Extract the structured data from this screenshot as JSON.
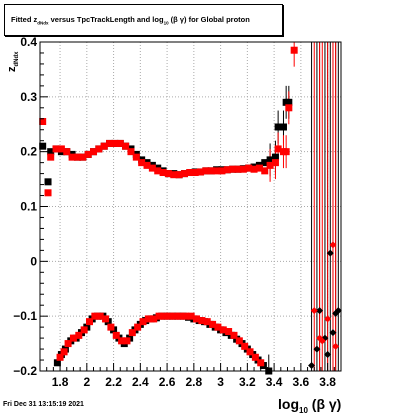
{
  "title": {
    "fitted": "Fitted",
    "z": "z",
    "z_sub": "dNdx",
    "versus": "versus TpcTrackLength and log",
    "log_sub": "10",
    "suffix": "(β γ) for Global proton"
  },
  "timestamp": "Fri Dec 31 13:15:19 2021",
  "colors": {
    "black_series": "#000000",
    "red_series": "#ff0000",
    "grid": "#aaaaaa"
  },
  "chart_data": {
    "type": "scatter",
    "title": "Fitted z_dNdx versus TpcTrackLength and log10(β γ) for Global proton",
    "xlabel": "log10 (β γ)",
    "ylabel": "z dNdx",
    "xlim": [
      1.65,
      3.9
    ],
    "ylim": [
      -0.2,
      0.4
    ],
    "x_ticks": [
      1.8,
      2.0,
      2.2,
      2.4,
      2.6,
      2.8,
      3.0,
      3.2,
      3.4,
      3.6,
      3.8
    ],
    "x_tick_labels": [
      "1.8",
      "2",
      "2.2",
      "2.4",
      "2.6",
      "2.8",
      "3",
      "3.2",
      "3.4",
      "3.6",
      "3.8"
    ],
    "y_ticks": [
      -0.2,
      -0.1,
      0.0,
      0.1,
      0.2,
      0.3,
      0.4
    ],
    "y_tick_labels": [
      "−0.2",
      "−0.1",
      "0",
      "0.1",
      "0.2",
      "0.3",
      "0.4"
    ],
    "grid": true,
    "series": [
      {
        "color": "#000000",
        "points": [
          [
            1.67,
            0.21
          ],
          [
            1.71,
            0.145
          ],
          [
            1.73,
            0.2
          ],
          [
            1.77,
            0.205
          ],
          [
            1.81,
            0.2
          ],
          [
            1.85,
            0.2
          ],
          [
            1.89,
            0.195
          ],
          [
            1.93,
            0.19
          ],
          [
            1.97,
            0.19
          ],
          [
            2.01,
            0.195
          ],
          [
            2.05,
            0.2
          ],
          [
            2.09,
            0.205
          ],
          [
            2.13,
            0.21
          ],
          [
            2.17,
            0.215
          ],
          [
            2.21,
            0.215
          ],
          [
            2.25,
            0.215
          ],
          [
            2.29,
            0.21
          ],
          [
            2.33,
            0.205
          ],
          [
            2.37,
            0.195
          ],
          [
            2.41,
            0.185
          ],
          [
            2.45,
            0.18
          ],
          [
            2.49,
            0.175
          ],
          [
            2.53,
            0.17
          ],
          [
            2.57,
            0.165
          ],
          [
            2.61,
            0.16
          ],
          [
            2.65,
            0.16
          ],
          [
            2.69,
            0.158
          ],
          [
            2.73,
            0.16
          ],
          [
            2.77,
            0.162
          ],
          [
            2.81,
            0.163
          ],
          [
            2.85,
            0.163
          ],
          [
            2.89,
            0.165
          ],
          [
            2.93,
            0.165
          ],
          [
            2.97,
            0.167
          ],
          [
            3.01,
            0.167
          ],
          [
            3.05,
            0.167
          ],
          [
            3.09,
            0.168
          ],
          [
            3.13,
            0.168
          ],
          [
            3.17,
            0.169
          ],
          [
            3.21,
            0.17
          ],
          [
            3.25,
            0.172
          ],
          [
            3.29,
            0.175
          ],
          [
            3.33,
            0.18
          ],
          [
            3.37,
            0.185
          ],
          [
            3.41,
            0.19
          ],
          [
            3.43,
            0.245
          ],
          [
            3.47,
            0.245
          ],
          [
            3.49,
            0.29
          ],
          [
            3.51,
            0.29
          ],
          [
            1.78,
            -0.185
          ],
          [
            1.81,
            -0.17
          ],
          [
            1.84,
            -0.16
          ],
          [
            1.88,
            -0.145
          ],
          [
            1.92,
            -0.14
          ],
          [
            1.96,
            -0.13
          ],
          [
            2.0,
            -0.12
          ],
          [
            2.04,
            -0.105
          ],
          [
            2.08,
            -0.1
          ],
          [
            2.12,
            -0.1
          ],
          [
            2.16,
            -0.11
          ],
          [
            2.2,
            -0.125
          ],
          [
            2.24,
            -0.14
          ],
          [
            2.28,
            -0.15
          ],
          [
            2.32,
            -0.14
          ],
          [
            2.36,
            -0.125
          ],
          [
            2.4,
            -0.115
          ],
          [
            2.44,
            -0.108
          ],
          [
            2.48,
            -0.105
          ],
          [
            2.52,
            -0.103
          ],
          [
            2.56,
            -0.1
          ],
          [
            2.6,
            -0.1
          ],
          [
            2.64,
            -0.1
          ],
          [
            2.68,
            -0.1
          ],
          [
            2.72,
            -0.1
          ],
          [
            2.76,
            -0.102
          ],
          [
            2.8,
            -0.105
          ],
          [
            2.84,
            -0.108
          ],
          [
            2.88,
            -0.11
          ],
          [
            2.92,
            -0.115
          ],
          [
            2.96,
            -0.12
          ],
          [
            3.0,
            -0.125
          ],
          [
            3.04,
            -0.13
          ],
          [
            3.08,
            -0.135
          ],
          [
            3.12,
            -0.142
          ],
          [
            3.16,
            -0.15
          ],
          [
            3.2,
            -0.16
          ],
          [
            3.24,
            -0.17
          ],
          [
            3.28,
            -0.18
          ],
          [
            3.32,
            -0.19
          ],
          [
            3.36,
            -0.2
          ],
          [
            3.68,
            -0.19
          ],
          [
            3.72,
            -0.16
          ],
          [
            3.74,
            -0.09
          ],
          [
            3.78,
            -0.14
          ],
          [
            3.8,
            -0.17
          ],
          [
            3.82,
            0.015
          ],
          [
            3.84,
            -0.13
          ],
          [
            3.86,
            -0.095
          ],
          [
            3.88,
            -0.09
          ]
        ]
      },
      {
        "color": "#ff0000",
        "points": [
          [
            1.67,
            0.255
          ],
          [
            1.71,
            0.125
          ],
          [
            1.73,
            0.19
          ],
          [
            1.77,
            0.205
          ],
          [
            1.81,
            0.205
          ],
          [
            1.85,
            0.2
          ],
          [
            1.89,
            0.19
          ],
          [
            1.93,
            0.19
          ],
          [
            1.97,
            0.19
          ],
          [
            2.01,
            0.195
          ],
          [
            2.05,
            0.2
          ],
          [
            2.09,
            0.205
          ],
          [
            2.13,
            0.21
          ],
          [
            2.17,
            0.215
          ],
          [
            2.21,
            0.215
          ],
          [
            2.25,
            0.215
          ],
          [
            2.29,
            0.21
          ],
          [
            2.33,
            0.2
          ],
          [
            2.37,
            0.19
          ],
          [
            2.41,
            0.18
          ],
          [
            2.45,
            0.175
          ],
          [
            2.49,
            0.17
          ],
          [
            2.53,
            0.165
          ],
          [
            2.57,
            0.162
          ],
          [
            2.61,
            0.16
          ],
          [
            2.65,
            0.158
          ],
          [
            2.69,
            0.158
          ],
          [
            2.73,
            0.16
          ],
          [
            2.77,
            0.162
          ],
          [
            2.81,
            0.162
          ],
          [
            2.85,
            0.163
          ],
          [
            2.89,
            0.165
          ],
          [
            2.93,
            0.165
          ],
          [
            2.97,
            0.165
          ],
          [
            3.01,
            0.165
          ],
          [
            3.05,
            0.167
          ],
          [
            3.09,
            0.168
          ],
          [
            3.13,
            0.168
          ],
          [
            3.17,
            0.168
          ],
          [
            3.21,
            0.17
          ],
          [
            3.25,
            0.168
          ],
          [
            3.29,
            0.17
          ],
          [
            3.33,
            0.165
          ],
          [
            3.37,
            0.175
          ],
          [
            3.41,
            0.18
          ],
          [
            3.43,
            0.205
          ],
          [
            3.47,
            0.2
          ],
          [
            3.49,
            0.2
          ],
          [
            3.51,
            0.28
          ],
          [
            3.55,
            0.385
          ],
          [
            1.8,
            -0.175
          ],
          [
            1.83,
            -0.165
          ],
          [
            1.86,
            -0.15
          ],
          [
            1.9,
            -0.14
          ],
          [
            1.94,
            -0.135
          ],
          [
            1.98,
            -0.125
          ],
          [
            2.02,
            -0.11
          ],
          [
            2.06,
            -0.1
          ],
          [
            2.1,
            -0.1
          ],
          [
            2.14,
            -0.105
          ],
          [
            2.18,
            -0.12
          ],
          [
            2.22,
            -0.135
          ],
          [
            2.26,
            -0.145
          ],
          [
            2.3,
            -0.145
          ],
          [
            2.34,
            -0.13
          ],
          [
            2.38,
            -0.12
          ],
          [
            2.42,
            -0.11
          ],
          [
            2.46,
            -0.105
          ],
          [
            2.5,
            -0.105
          ],
          [
            2.54,
            -0.1
          ],
          [
            2.58,
            -0.1
          ],
          [
            2.62,
            -0.1
          ],
          [
            2.66,
            -0.1
          ],
          [
            2.7,
            -0.1
          ],
          [
            2.74,
            -0.1
          ],
          [
            2.78,
            -0.1
          ],
          [
            2.82,
            -0.105
          ],
          [
            2.86,
            -0.108
          ],
          [
            2.9,
            -0.11
          ],
          [
            2.94,
            -0.115
          ],
          [
            2.98,
            -0.12
          ],
          [
            3.02,
            -0.125
          ],
          [
            3.06,
            -0.128
          ],
          [
            3.1,
            -0.135
          ],
          [
            3.14,
            -0.145
          ],
          [
            3.18,
            -0.155
          ],
          [
            3.22,
            -0.165
          ],
          [
            3.26,
            -0.175
          ],
          [
            3.3,
            -0.185
          ],
          [
            3.7,
            -0.09
          ],
          [
            3.74,
            -0.14
          ],
          [
            3.76,
            -0.145
          ],
          [
            3.8,
            -0.105
          ],
          [
            3.84,
            0.03
          ],
          [
            3.86,
            -0.155
          ]
        ]
      }
    ]
  }
}
